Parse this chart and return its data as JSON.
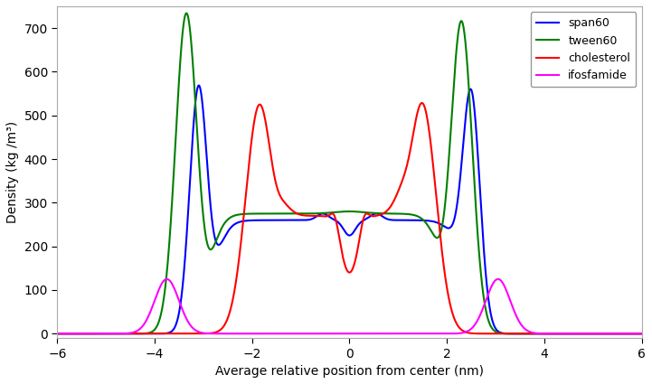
{
  "xlabel": "Average relative position from center (nm)",
  "ylabel": "Density (kg /m³)",
  "xlim": [
    -6,
    6
  ],
  "ylim": [
    -10,
    750
  ],
  "yticks": [
    0,
    100,
    200,
    300,
    400,
    500,
    600,
    700
  ],
  "xticks": [
    -6,
    -4,
    -2,
    0,
    2,
    4,
    6
  ],
  "legend": [
    "span60",
    "tween60",
    "cholesterol",
    "ifosfamide"
  ],
  "colors": {
    "span60": "#0000ff",
    "tween60": "#008000",
    "cholesterol": "#ff0000",
    "ifosfamide": "#ff00ff"
  },
  "background_color": "#ffffff",
  "linewidth": 1.5,
  "figsize": [
    7.21,
    4.25
  ],
  "dpi": 100
}
